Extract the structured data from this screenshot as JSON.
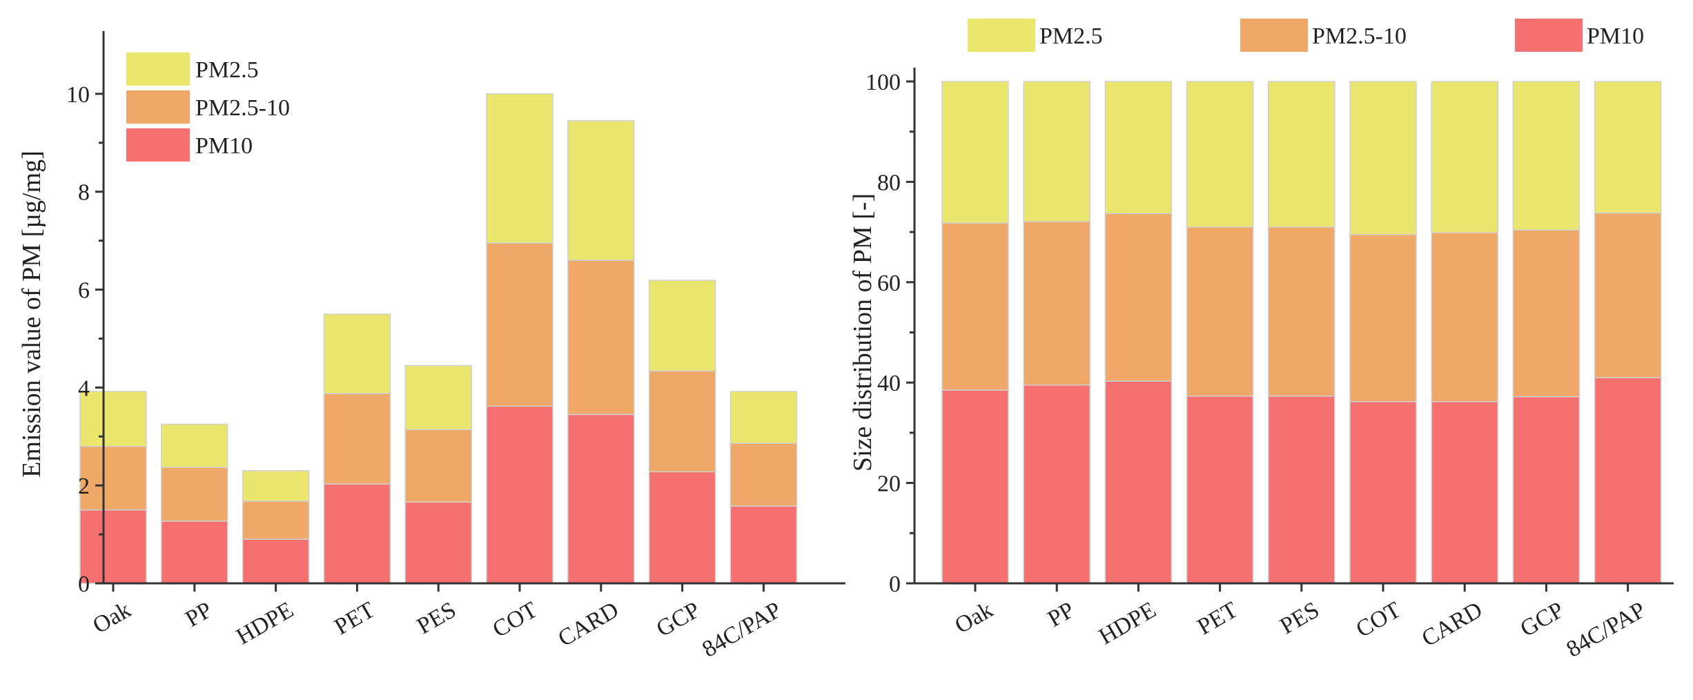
{
  "colors": {
    "PM2.5": "#ebe66e",
    "PM2.5-10": "#f0a868",
    "PM10": "#f57171"
  },
  "chart_data": [
    {
      "type": "bar",
      "stacked": true,
      "title": "",
      "xlabel": "",
      "ylabel": "Emission value of PM [µg/mg]",
      "ylim": [
        0,
        11
      ],
      "yticks": [
        0,
        2,
        4,
        6,
        8,
        10
      ],
      "legend_position": "top-left",
      "categories": [
        "Oak",
        "PP",
        "HDPE",
        "PET",
        "PES",
        "COT",
        "CARD",
        "GCP",
        "84C/PAP"
      ],
      "series": [
        {
          "name": "PM10",
          "values": [
            1.5,
            1.27,
            0.9,
            2.03,
            1.66,
            3.62,
            3.45,
            2.28,
            1.58
          ]
        },
        {
          "name": "PM2.5-10",
          "values": [
            1.3,
            1.1,
            0.78,
            1.85,
            1.48,
            3.33,
            3.15,
            2.06,
            1.28
          ]
        },
        {
          "name": "PM2.5",
          "values": [
            1.12,
            0.88,
            0.62,
            1.62,
            1.31,
            3.05,
            2.85,
            1.85,
            1.06
          ]
        }
      ]
    },
    {
      "type": "bar",
      "stacked": true,
      "title": "",
      "xlabel": "",
      "ylabel": "Size distribution of PM [-]",
      "ylim": [
        0,
        100
      ],
      "yticks": [
        0,
        20,
        40,
        60,
        80,
        100
      ],
      "legend_position": "top",
      "categories": [
        "Oak",
        "PP",
        "HDPE",
        "PET",
        "PES",
        "COT",
        "CARD",
        "GCP",
        "84C/PAP"
      ],
      "series": [
        {
          "name": "PM10",
          "values": [
            38.5,
            39.5,
            40.3,
            37.3,
            37.3,
            36.2,
            36.2,
            37.2,
            41.0
          ]
        },
        {
          "name": "PM2.5-10",
          "values": [
            33.3,
            32.6,
            33.4,
            33.7,
            33.7,
            33.3,
            33.7,
            33.2,
            32.8
          ]
        },
        {
          "name": "PM2.5",
          "values": [
            28.2,
            27.9,
            26.3,
            29.0,
            29.0,
            30.5,
            30.1,
            29.6,
            26.2
          ]
        }
      ]
    }
  ]
}
